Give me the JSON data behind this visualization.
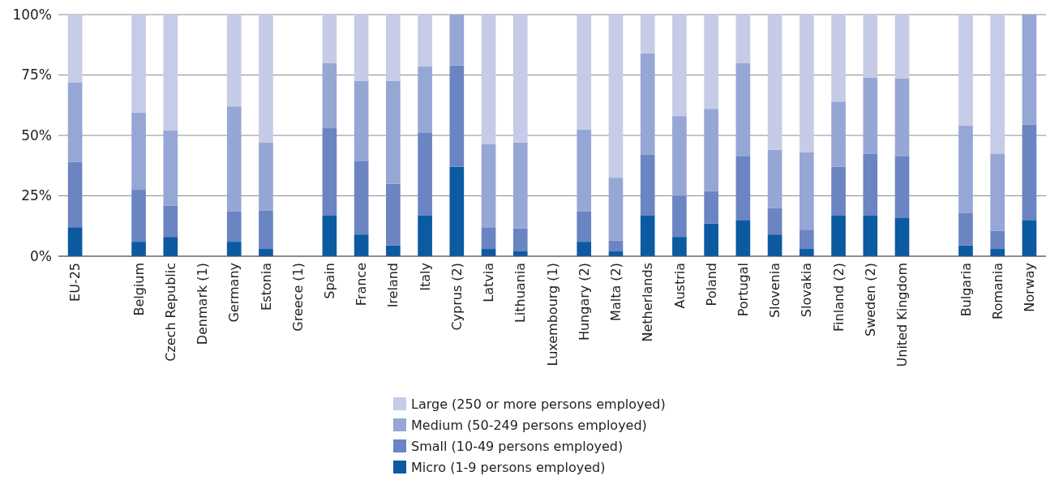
{
  "chart_data": {
    "type": "bar",
    "stacked": true,
    "categories": [
      "EU-25",
      null,
      "Belgium",
      "Czech Republic",
      "Denmark (1)",
      "Germany",
      "Estonia",
      "Greece (1)",
      "Spain",
      "France",
      "Ireland",
      "Italy",
      "Cyprus (2)",
      "Latvia",
      "Lithuania",
      "Luxembourg (1)",
      "Hungary (2)",
      "Malta (2)",
      "Netherlands",
      "Austria",
      "Poland",
      "Portugal",
      "Slovenia",
      "Slovakia",
      "Finland (2)",
      "Sweden (2)",
      "United Kingdom",
      null,
      "Bulgaria",
      "Romania",
      "Norway"
    ],
    "series": [
      {
        "name": "Micro (1-9 persons employed)",
        "color": "#0b5aa2",
        "values": [
          12,
          null,
          6,
          8,
          null,
          6,
          3,
          null,
          17,
          9,
          4.5,
          17,
          37,
          3,
          2,
          null,
          6,
          2,
          17,
          8,
          13.5,
          15,
          9,
          3,
          17,
          17,
          16,
          null,
          4.5,
          3,
          15
        ]
      },
      {
        "name": "Small (10-49 persons employed)",
        "color": "#6b84c2",
        "values": [
          27,
          null,
          21.5,
          13,
          null,
          12.5,
          16,
          null,
          36,
          30.5,
          25.5,
          34,
          42,
          9,
          9.5,
          null,
          12.5,
          4.5,
          25,
          17,
          13.5,
          26.5,
          11,
          8,
          20,
          25.5,
          25.5,
          null,
          13.5,
          7.5,
          39.5
        ]
      },
      {
        "name": "Medium (50-249 persons employed)",
        "color": "#96a6d5",
        "values": [
          33,
          null,
          32,
          31,
          null,
          43.5,
          28,
          null,
          27,
          33,
          42.5,
          27.5,
          21,
          34.5,
          35.5,
          null,
          34,
          26,
          42,
          33,
          34,
          38.5,
          24,
          32,
          27,
          31.5,
          32,
          null,
          36,
          32,
          45.5
        ]
      },
      {
        "name": "Large (250 or more persons employed)",
        "color": "#c6cbe7",
        "values": [
          28,
          null,
          40.5,
          48,
          null,
          38,
          53,
          null,
          20,
          27.5,
          27.5,
          21.5,
          0,
          53.5,
          53,
          null,
          47.5,
          67.5,
          16,
          42,
          39,
          20,
          56,
          57,
          36,
          26,
          26.5,
          null,
          46,
          57.5,
          0
        ]
      }
    ],
    "ylim": [
      0,
      100
    ],
    "yticks": [
      {
        "value": 0,
        "label": "0%"
      },
      {
        "value": 25,
        "label": "25%"
      },
      {
        "value": 50,
        "label": "50%"
      },
      {
        "value": 75,
        "label": "75%"
      },
      {
        "value": 100,
        "label": "100%"
      }
    ],
    "grid": "y",
    "legend": "bottom"
  }
}
